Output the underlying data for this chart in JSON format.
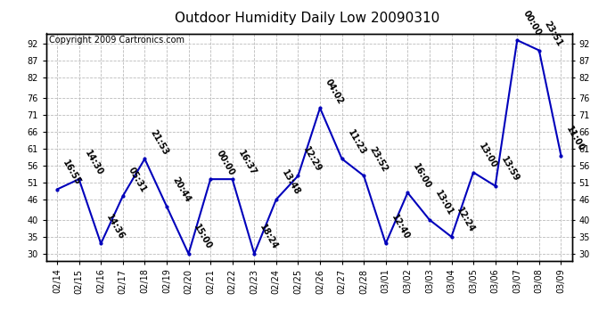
{
  "title": "Outdoor Humidity Daily Low 20090310",
  "copyright": "Copyright 2009 Cartronics.com",
  "line_color": "#0000BB",
  "marker_color": "#0000BB",
  "bg_color": "#ffffff",
  "grid_color": "#bbbbbb",
  "x_labels": [
    "02/14",
    "02/15",
    "02/16",
    "02/17",
    "02/18",
    "02/19",
    "02/20",
    "02/21",
    "02/22",
    "02/23",
    "02/24",
    "02/25",
    "02/26",
    "02/27",
    "02/28",
    "03/01",
    "03/02",
    "03/03",
    "03/04",
    "03/05",
    "03/06",
    "03/07",
    "03/08",
    "03/09"
  ],
  "y_values": [
    49,
    52,
    33,
    47,
    58,
    44,
    30,
    52,
    52,
    30,
    46,
    53,
    73,
    58,
    53,
    33,
    48,
    40,
    35,
    54,
    50,
    93,
    90,
    59
  ],
  "point_labels": [
    "16:55",
    "14:30",
    "14:36",
    "05:31",
    "21:53",
    "20:44",
    "15:00",
    "00:00",
    "16:37",
    "18:24",
    "13:48",
    "12:29",
    "04:02",
    "11:23",
    "23:52",
    "12:40",
    "16:00",
    "13:01",
    "12:24",
    "13:00",
    "13:59",
    "00:00",
    "23:51",
    "11:00"
  ],
  "ylim_min": 28,
  "ylim_max": 95,
  "yticks": [
    30,
    35,
    40,
    46,
    51,
    56,
    61,
    66,
    71,
    76,
    82,
    87,
    92
  ],
  "title_fontsize": 11,
  "label_fontsize": 7,
  "copyright_fontsize": 7,
  "tick_fontsize": 7
}
